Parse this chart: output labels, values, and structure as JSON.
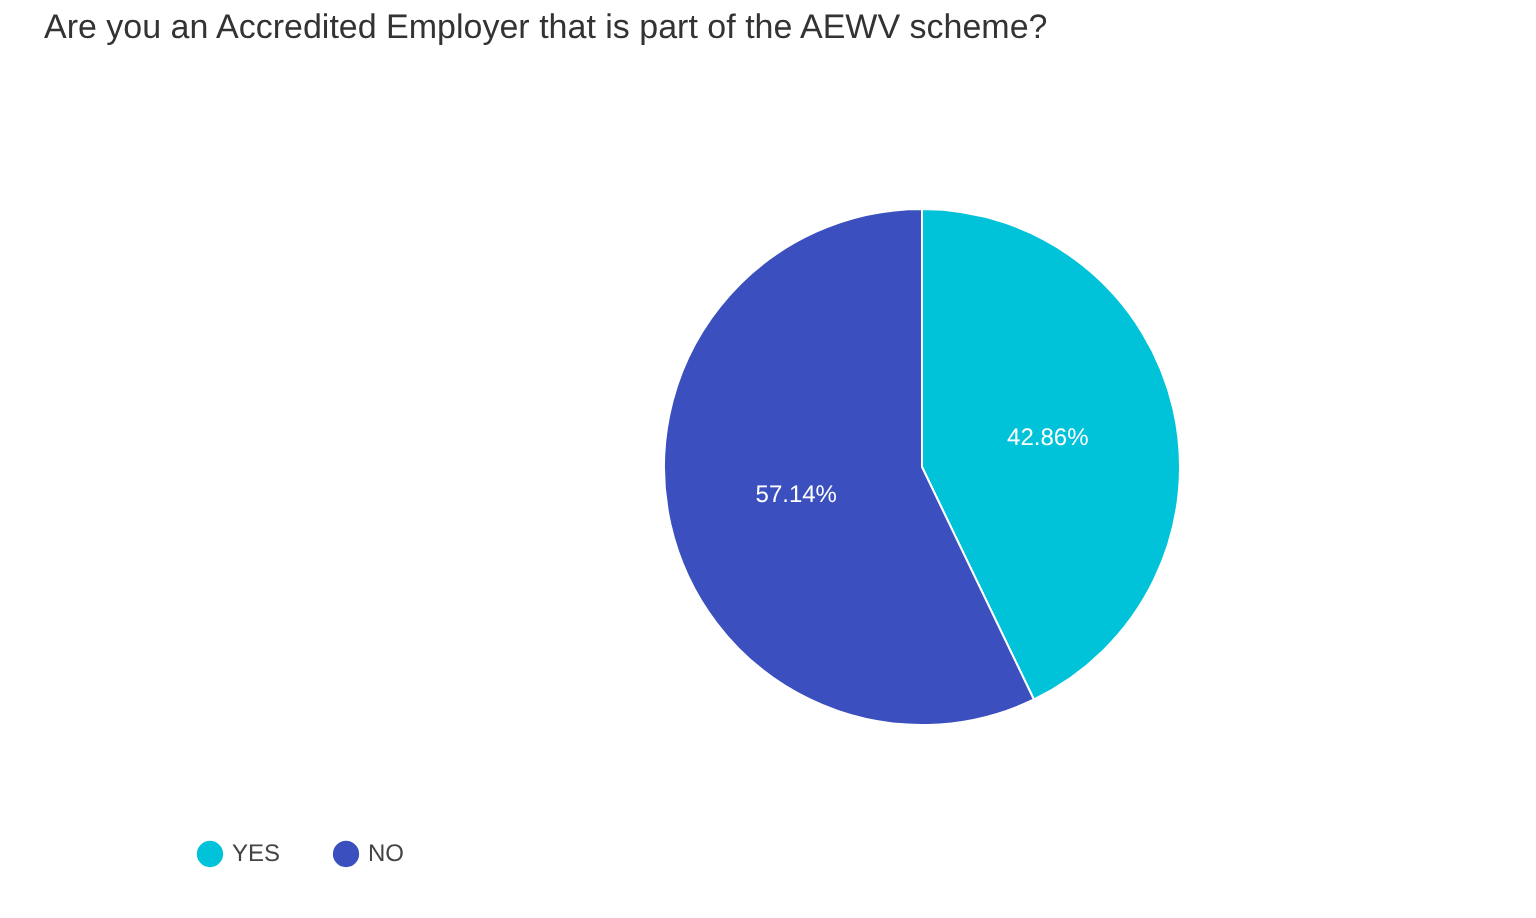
{
  "chart_data": {
    "type": "pie",
    "title": "Are you an Accredited Employer that is part of the AEWV scheme?",
    "categories": [
      "YES",
      "NO"
    ],
    "values": [
      42.86,
      57.14
    ],
    "colors": [
      "#00c3da",
      "#3b50be"
    ],
    "value_labels": [
      "42.86%",
      "57.14%"
    ],
    "legend": "bottom left"
  }
}
